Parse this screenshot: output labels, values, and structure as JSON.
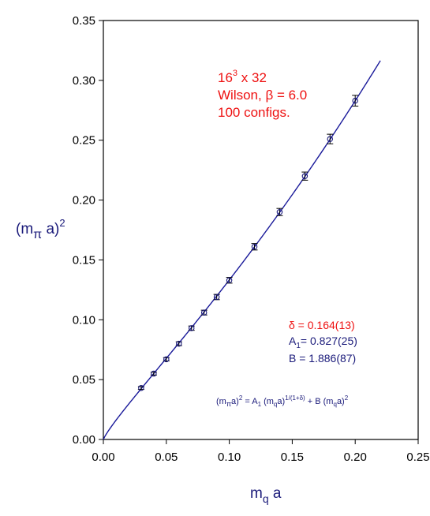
{
  "chart_data": {
    "type": "scatter",
    "xlim": [
      0.0,
      0.25
    ],
    "ylim": [
      0.0,
      0.35
    ],
    "x_ticks": [
      "0.00",
      "0.05",
      "0.10",
      "0.15",
      "0.20",
      "0.25"
    ],
    "y_ticks": [
      "0.00",
      "0.05",
      "0.10",
      "0.15",
      "0.20",
      "0.25",
      "0.30",
      "0.35"
    ],
    "x_tick_values": [
      0.0,
      0.05,
      0.1,
      0.15,
      0.2,
      0.25
    ],
    "y_tick_values": [
      0.0,
      0.05,
      0.1,
      0.15,
      0.2,
      0.25,
      0.3,
      0.35
    ],
    "xlabel": {
      "main": "m",
      "sub": "q",
      "tail": " a"
    },
    "ylabel": {
      "open": "(m",
      "sub": "π",
      "mid": " a)",
      "sup": "2"
    },
    "series": [
      {
        "marker": "circle",
        "color": "#1a1a7a",
        "points": [
          {
            "x": 0.03,
            "y": 0.043,
            "err": 0.0012
          },
          {
            "x": 0.04,
            "y": 0.055,
            "err": 0.0012
          },
          {
            "x": 0.05,
            "y": 0.067,
            "err": 0.0014
          },
          {
            "x": 0.06,
            "y": 0.08,
            "err": 0.0016
          },
          {
            "x": 0.07,
            "y": 0.093,
            "err": 0.0018
          },
          {
            "x": 0.08,
            "y": 0.106,
            "err": 0.002
          },
          {
            "x": 0.09,
            "y": 0.119,
            "err": 0.0022
          },
          {
            "x": 0.1,
            "y": 0.133,
            "err": 0.0024
          },
          {
            "x": 0.12,
            "y": 0.161,
            "err": 0.0027
          },
          {
            "x": 0.14,
            "y": 0.19,
            "err": 0.003
          },
          {
            "x": 0.16,
            "y": 0.22,
            "err": 0.0034
          },
          {
            "x": 0.18,
            "y": 0.251,
            "err": 0.004
          },
          {
            "x": 0.2,
            "y": 0.283,
            "err": 0.0045
          }
        ]
      }
    ],
    "fit": {
      "color": "#1a1a9a",
      "delta": 0.164,
      "A1": 0.827,
      "B": 1.886,
      "x_range": [
        0.0,
        0.22
      ]
    },
    "annotations": {
      "lattice_line1": {
        "base": "16",
        "sup": "3",
        "rest": " x 32"
      },
      "lattice_line2": "Wilson, β = 6.0",
      "lattice_line3": "100 configs.",
      "delta_text": "δ = 0.164(13)",
      "a1_text": {
        "main": "A",
        "sub": "1",
        "rest": "= 0.827(25)"
      },
      "b_text": "B = 1.886(87)",
      "formula": {
        "p1": "(m",
        "s1": "π",
        "p2": "a)",
        "sup1": "2",
        "p3": " = A",
        "s2": "1",
        "p4": " (m",
        "s3": "q",
        "p5": "a)",
        "sup2": "1/(1+δ)",
        "p6": " + B (m",
        "s4": "q",
        "p7": "a)",
        "sup3": "2"
      }
    }
  }
}
